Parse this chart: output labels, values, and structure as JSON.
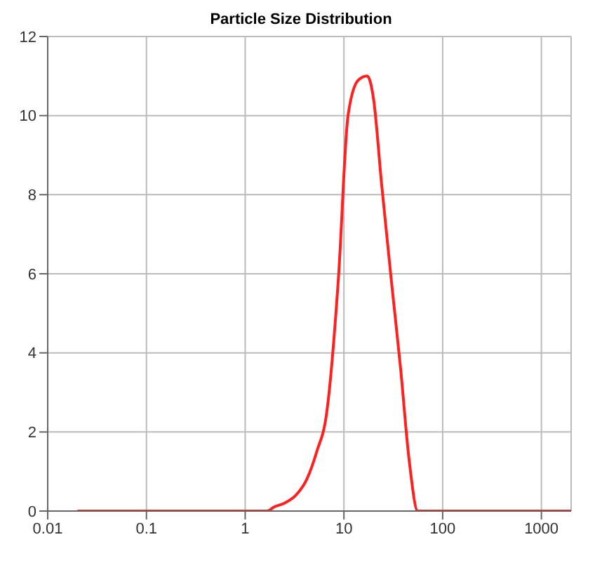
{
  "chart_data": {
    "type": "line",
    "title": "Particle Size Distribution",
    "x": [
      0.02,
      1.0,
      1.67,
      1.95,
      2.5,
      3.26,
      4.2,
      5.3,
      6.7,
      8.8,
      11,
      14,
      17.2,
      20,
      24,
      30,
      37.5,
      45.7,
      56,
      100,
      1000,
      2000
    ],
    "series": [
      {
        "color": "#ff2020",
        "values": [
          0,
          0,
          0,
          0.1,
          0.2,
          0.4,
          0.8,
          1.5,
          2.5,
          5.9,
          10.0,
          10.9,
          11.0,
          10.4,
          8.3,
          5.9,
          3.6,
          1.3,
          0,
          0,
          0,
          0
        ]
      }
    ],
    "xlim": [
      0.01,
      2000
    ],
    "xticks": [
      0.01,
      0.1,
      1,
      10,
      100,
      1000
    ],
    "ylim": [
      0,
      12
    ],
    "yticks": [
      0,
      2,
      4,
      6,
      8,
      10,
      12
    ],
    "log": "x",
    "grid": true,
    "marker": "none",
    "line_style": "solid"
  }
}
